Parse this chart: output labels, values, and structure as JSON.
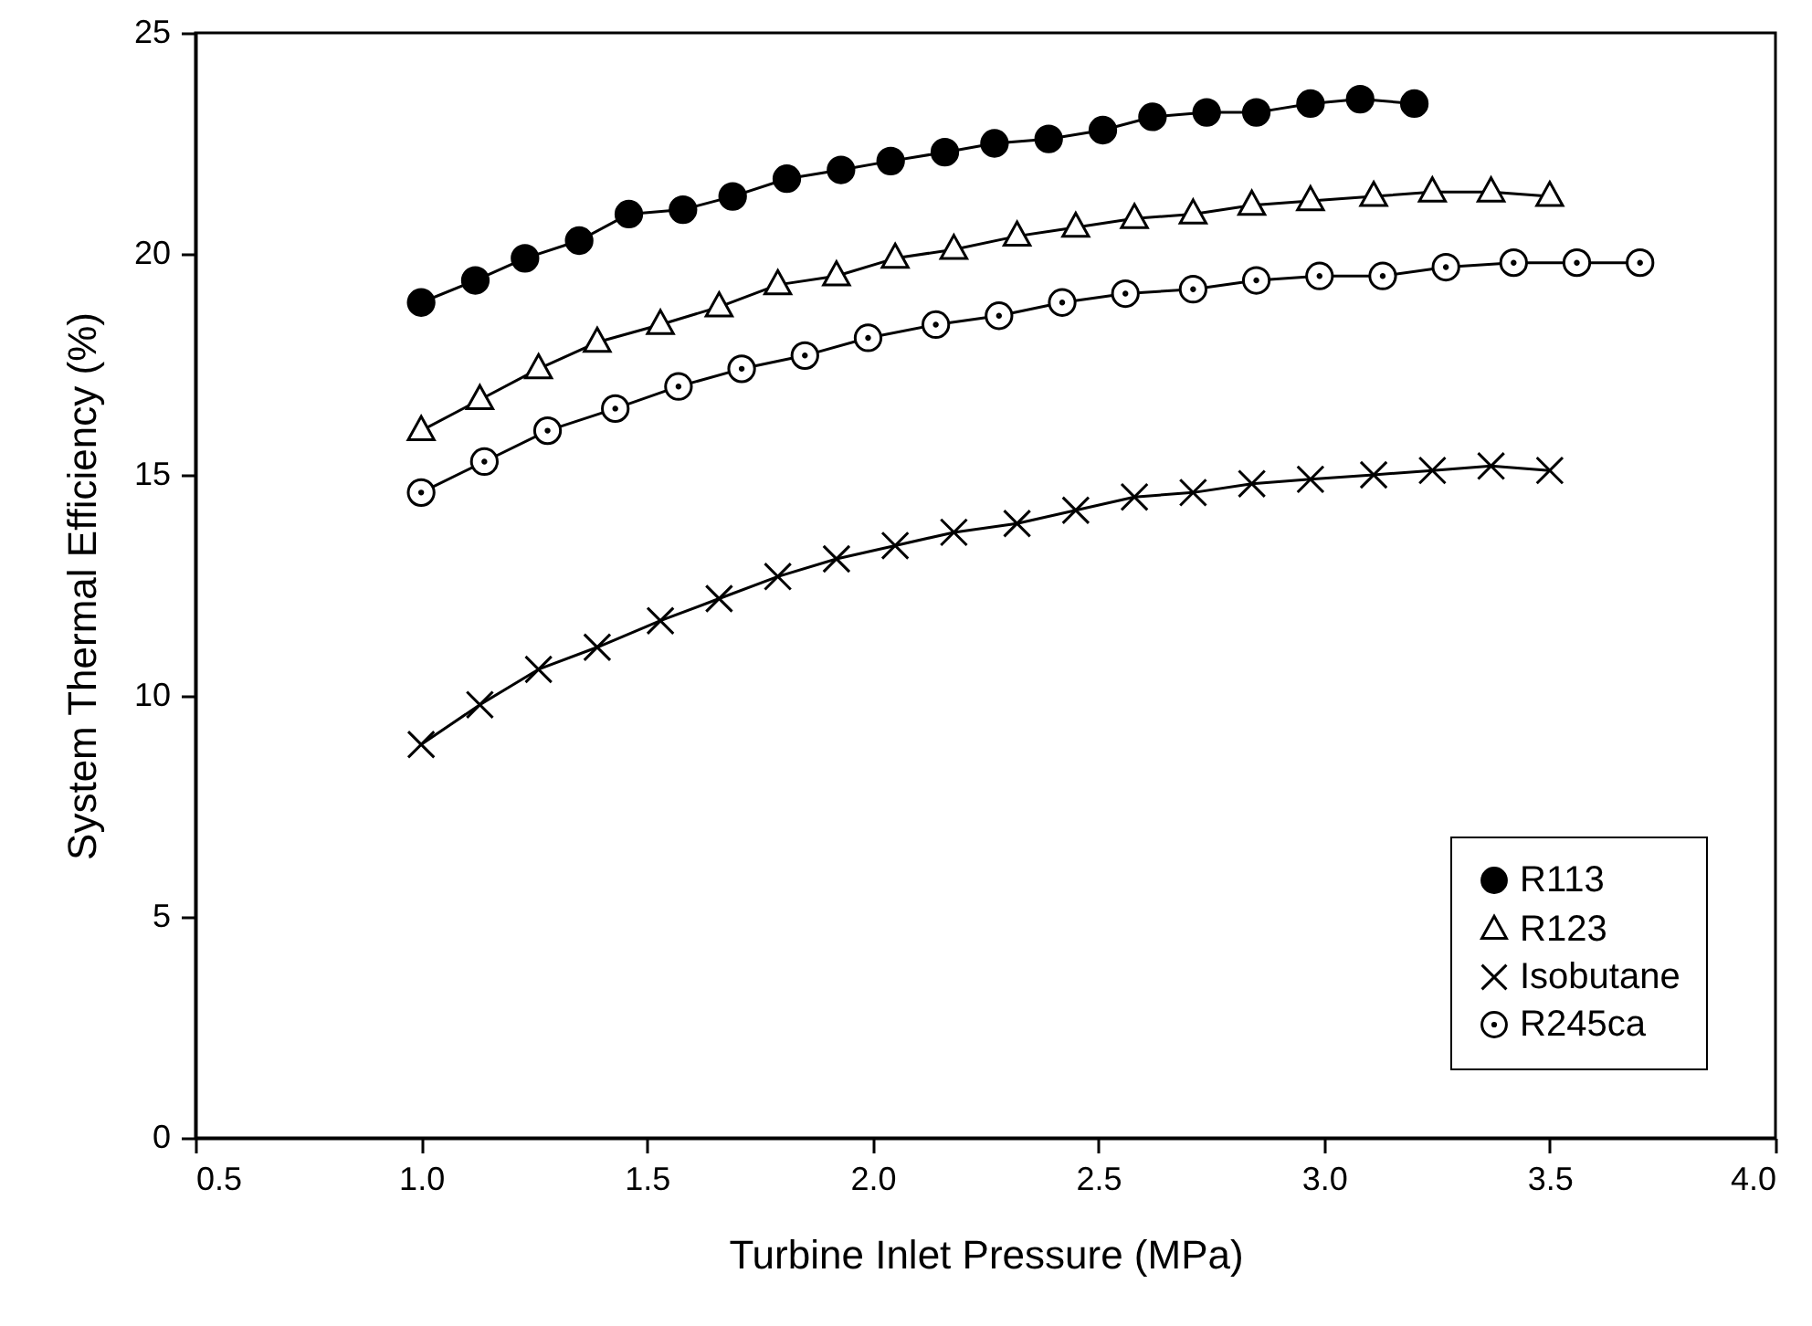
{
  "chart_data": {
    "type": "line",
    "xlabel": "Turbine Inlet Pressure (MPa)",
    "ylabel": "System Thermal Efficiency (%)",
    "xlim": [
      0.5,
      4.0
    ],
    "xticks": [
      {
        "value": 0.5,
        "label": "0.5"
      },
      {
        "value": 1,
        "label": "1.0"
      },
      {
        "value": 1.5,
        "label": "1.5"
      },
      {
        "value": 2,
        "label": "2.0"
      },
      {
        "value": 2.5,
        "label": "2.5"
      },
      {
        "value": 3,
        "label": "3.0"
      },
      {
        "value": 3.5,
        "label": "3.5"
      },
      {
        "value": 4,
        "label": "4.0"
      }
    ],
    "ylim": [
      0,
      25
    ],
    "yticks": [
      0,
      5,
      10,
      15,
      20,
      25
    ],
    "grid": false,
    "legend": "bottom right",
    "line_style": "solid",
    "series": [
      {
        "name": "R113",
        "color": "#000000",
        "marker": "circle",
        "x": [
          1.0,
          1.12,
          1.23,
          1.35,
          1.46,
          1.58,
          1.69,
          1.81,
          1.93,
          2.04,
          2.16,
          2.27,
          2.39,
          2.51,
          2.62,
          2.74,
          2.85,
          2.97,
          3.08,
          3.2
        ],
        "values": [
          18.9,
          19.4,
          19.9,
          20.3,
          20.9,
          21.0,
          21.3,
          21.7,
          21.9,
          22.1,
          22.3,
          22.5,
          22.6,
          22.8,
          23.1,
          23.2,
          23.2,
          23.4,
          23.5,
          23.4
        ]
      },
      {
        "name": "R123",
        "color": "#000000",
        "marker": "triangle",
        "x": [
          1.0,
          1.13,
          1.26,
          1.39,
          1.53,
          1.66,
          1.79,
          1.92,
          2.05,
          2.18,
          2.32,
          2.45,
          2.58,
          2.71,
          2.84,
          2.97,
          3.11,
          3.24,
          3.37,
          3.5
        ],
        "values": [
          16.0,
          16.7,
          17.4,
          18.0,
          18.4,
          18.8,
          19.3,
          19.5,
          19.9,
          20.1,
          20.4,
          20.6,
          20.8,
          20.9,
          21.1,
          21.2,
          21.3,
          21.4,
          21.4,
          21.3
        ]
      },
      {
        "name": "Isobutane",
        "color": "#000000",
        "marker": "cross",
        "x": [
          1.0,
          1.13,
          1.26,
          1.39,
          1.53,
          1.66,
          1.79,
          1.92,
          2.05,
          2.18,
          2.32,
          2.45,
          2.58,
          2.71,
          2.84,
          2.97,
          3.11,
          3.24,
          3.37,
          3.5
        ],
        "values": [
          8.9,
          9.8,
          10.6,
          11.1,
          11.7,
          12.2,
          12.7,
          13.1,
          13.4,
          13.7,
          13.9,
          14.2,
          14.5,
          14.6,
          14.8,
          14.9,
          15.0,
          15.1,
          15.2,
          15.1
        ]
      },
      {
        "name": "R245ca",
        "color": "#000000",
        "marker": "circle",
        "x": [
          1.0,
          1.14,
          1.28,
          1.43,
          1.57,
          1.71,
          1.85,
          1.99,
          2.14,
          2.28,
          2.42,
          2.56,
          2.71,
          2.85,
          2.99,
          3.13,
          3.27,
          3.42,
          3.56,
          3.7
        ],
        "values": [
          14.6,
          15.3,
          16.0,
          16.5,
          17.0,
          17.4,
          17.7,
          18.1,
          18.4,
          18.6,
          18.9,
          19.1,
          19.2,
          19.4,
          19.5,
          19.5,
          19.7,
          19.8,
          19.8,
          19.8
        ]
      }
    ]
  }
}
